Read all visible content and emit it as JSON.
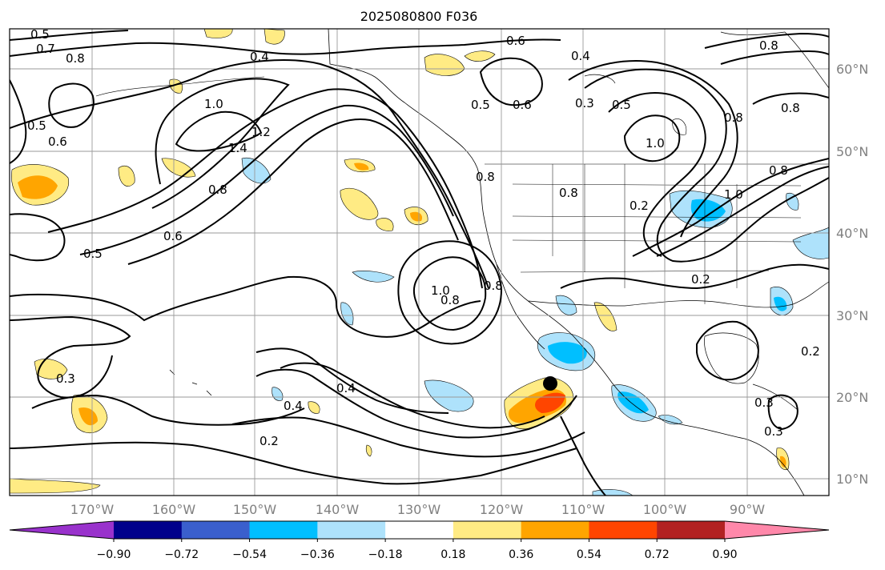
{
  "title": "2025080800 F036",
  "map": {
    "lat_labels": [
      "60°N",
      "50°N",
      "40°N",
      "30°N",
      "20°N",
      "10°N"
    ],
    "lon_labels": [
      "170°W",
      "160°W",
      "150°W",
      "140°W",
      "130°W",
      "120°W",
      "110°W",
      "100°W",
      "90°W"
    ],
    "contour_labels": [
      "0.5",
      "0.7",
      "0.8",
      "0.4",
      "0.6",
      "0.4",
      "0.8",
      "1.0",
      "1.4",
      "1.2",
      "0.5",
      "0.6",
      "0.8",
      "0.6",
      "0.5",
      "0.6",
      "0.8",
      "0.3",
      "0.5",
      "1.0",
      "0.8",
      "0.8",
      "0.2",
      "1.0",
      "0.8",
      "0.2",
      "1.0",
      "0.8",
      "0.8",
      "0.3",
      "0.4",
      "0.2",
      "0.4",
      "0.3",
      "0.3",
      "0.2",
      "0.5",
      "0.8"
    ],
    "colors": {
      "land": "#ffffff",
      "grid": "#9a9a9a",
      "contour": "#000000",
      "storm_marker": "#000000"
    }
  },
  "colorbar": {
    "tick_labels": [
      "−0.90",
      "−0.72",
      "−0.54",
      "−0.36",
      "−0.18",
      "0.18",
      "0.36",
      "0.54",
      "0.72",
      "0.90"
    ],
    "colors": [
      "#9932cc",
      "#00008b",
      "#3a5fcd",
      "#00bfff",
      "#aee2fb",
      "#ffffff",
      "#ffeb84",
      "#ffa500",
      "#ff4500",
      "#b22222",
      "#ff88aa"
    ]
  }
}
